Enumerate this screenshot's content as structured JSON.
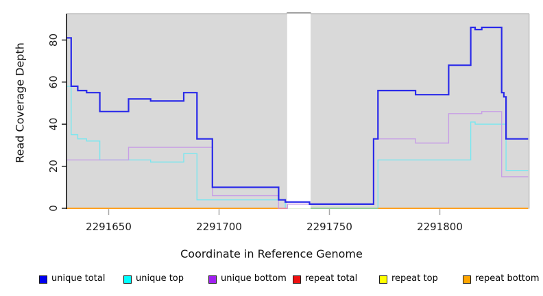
{
  "figure": {
    "panel_bg": "#D9D9D9",
    "panel_border": "#BFBFBF",
    "gap_notch_color": "#8E8E8E",
    "axis_color": "#000000",
    "x_tick_color": "#A8A8A8",
    "tick_label_color": "#202020"
  },
  "chart_data": {
    "type": "line",
    "step": true,
    "title": "",
    "xlabel": "Coordinate in Reference Genome",
    "ylabel": "Read Coverage Depth",
    "xlim": [
      2291631,
      2291840
    ],
    "ylim": [
      0,
      88
    ],
    "x_ticks": [
      2291650,
      2291700,
      2291750,
      2291800
    ],
    "y_ticks": [
      0,
      20,
      40,
      60,
      80
    ],
    "grid": false,
    "legend_position": "bottom",
    "gap": {
      "x_start": 2291731,
      "x_end": 2291741
    },
    "series": [
      {
        "name": "unique total",
        "legend_color": "#0000EE",
        "line_color": "#2A2AE9",
        "line_width": 2.2,
        "points": [
          [
            2291631,
            81
          ],
          [
            2291633,
            58
          ],
          [
            2291636,
            56
          ],
          [
            2291640,
            55
          ],
          [
            2291646,
            46
          ],
          [
            2291659,
            52
          ],
          [
            2291669,
            51
          ],
          [
            2291684,
            55
          ],
          [
            2291690,
            33
          ],
          [
            2291697,
            10
          ],
          [
            2291727,
            4
          ],
          [
            2291730,
            3
          ],
          [
            2291741,
            2
          ],
          [
            2291770,
            33
          ],
          [
            2291772,
            56
          ],
          [
            2291789,
            54
          ],
          [
            2291804,
            68
          ],
          [
            2291814,
            86
          ],
          [
            2291816,
            85
          ],
          [
            2291819,
            86
          ],
          [
            2291828,
            55
          ],
          [
            2291829,
            53
          ],
          [
            2291830,
            33
          ],
          [
            2291840,
            33
          ]
        ]
      },
      {
        "name": "unique top",
        "legend_color": "#00FFFF",
        "line_color": "#79E7F0",
        "line_width": 1.4,
        "points": [
          [
            2291631,
            58
          ],
          [
            2291633,
            35
          ],
          [
            2291636,
            33
          ],
          [
            2291640,
            32
          ],
          [
            2291646,
            23
          ],
          [
            2291669,
            22
          ],
          [
            2291684,
            26
          ],
          [
            2291690,
            4
          ],
          [
            2291730,
            0
          ],
          [
            2291741,
            0
          ],
          [
            2291772,
            23
          ],
          [
            2291814,
            41
          ],
          [
            2291816,
            40
          ],
          [
            2291830,
            18
          ],
          [
            2291840,
            18
          ]
        ]
      },
      {
        "name": "unique bottom",
        "legend_color": "#A020F0",
        "line_color": "#C79EE6",
        "line_width": 1.4,
        "points": [
          [
            2291631,
            23
          ],
          [
            2291659,
            29
          ],
          [
            2291697,
            6
          ],
          [
            2291727,
            0
          ],
          [
            2291731,
            2
          ],
          [
            2291770,
            33
          ],
          [
            2291789,
            31
          ],
          [
            2291804,
            45
          ],
          [
            2291819,
            46
          ],
          [
            2291828,
            15
          ],
          [
            2291840,
            15
          ]
        ]
      },
      {
        "name": "repeat total",
        "legend_color": "#EE1111",
        "line_color": "#EE1111",
        "line_width": 1.4,
        "points": [
          [
            2291631,
            0
          ],
          [
            2291840,
            0
          ]
        ]
      },
      {
        "name": "repeat top",
        "legend_color": "#FFFF00",
        "line_color": "#FFFF00",
        "line_width": 1.4,
        "points": [
          [
            2291631,
            0
          ],
          [
            2291840,
            0
          ]
        ]
      },
      {
        "name": "repeat bottom",
        "legend_color": "#FFA500",
        "line_color": "#FF9C1C",
        "line_width": 1.8,
        "points": [
          [
            2291631,
            0
          ],
          [
            2291840,
            0
          ]
        ]
      }
    ],
    "baseline_segments": [
      {
        "x_start": 2291631,
        "x_end": 2291726.5,
        "color": "#FF9C1C"
      },
      {
        "x_start": 2291726.5,
        "x_end": 2291731,
        "color": "#EA8D99"
      },
      {
        "x_start": 2291741.3,
        "x_end": 2291772,
        "color": "#8FCE99"
      },
      {
        "x_start": 2291772,
        "x_end": 2291840,
        "color": "#FF9C1C"
      }
    ]
  },
  "legend": {
    "items": [
      {
        "label": "unique total",
        "color": "#0000EE"
      },
      {
        "label": "unique top",
        "color": "#00FFFF"
      },
      {
        "label": "unique bottom",
        "color": "#A020F0"
      },
      {
        "label": "repeat total",
        "color": "#EE1111"
      },
      {
        "label": "repeat top",
        "color": "#FFFF00"
      },
      {
        "label": "repeat bottom",
        "color": "#FFA500"
      }
    ]
  }
}
